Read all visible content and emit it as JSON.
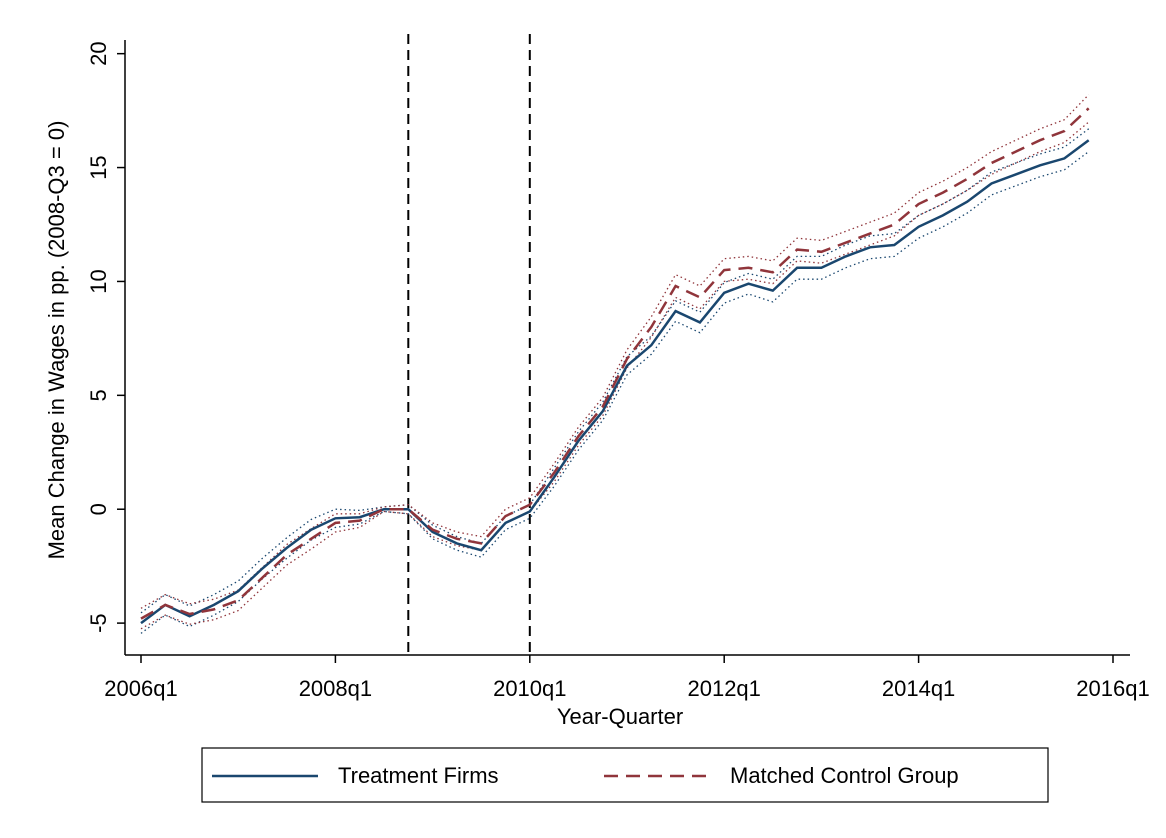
{
  "chart_data": {
    "type": "line",
    "y_label": "Mean Change in Wages in pp. (2008-Q3 = 0)",
    "x_label": "Year-Quarter",
    "x": [
      "2006q1",
      "2006q2",
      "2006q3",
      "2006q4",
      "2007q1",
      "2007q2",
      "2007q3",
      "2007q4",
      "2008q1",
      "2008q2",
      "2008q3",
      "2008q4",
      "2009q1",
      "2009q2",
      "2009q3",
      "2009q4",
      "2010q1",
      "2010q2",
      "2010q3",
      "2010q4",
      "2011q1",
      "2011q2",
      "2011q3",
      "2011q4",
      "2012q1",
      "2012q2",
      "2012q3",
      "2012q4",
      "2013q1",
      "2013q2",
      "2013q3",
      "2013q4",
      "2014q1",
      "2014q2",
      "2014q3",
      "2014q4",
      "2015q1",
      "2015q2",
      "2015q3",
      "2015q4"
    ],
    "xlim": [
      "2006q1",
      "2016q1"
    ],
    "xticks": [
      "2006q1",
      "2008q1",
      "2010q1",
      "2012q1",
      "2014q1",
      "2016q1"
    ],
    "ylim": [
      -6.4,
      20.6
    ],
    "yticks": [
      -5,
      0,
      5,
      10,
      15,
      20
    ],
    "reference_lines_x": [
      "2008q4",
      "2010q1"
    ],
    "legend": "bottom",
    "series": [
      {
        "name": "Treatment Firms",
        "color": "#1a476f",
        "dash": "solid",
        "values": [
          -5.0,
          -4.2,
          -4.7,
          -4.2,
          -3.6,
          -2.6,
          -1.7,
          -0.9,
          -0.4,
          -0.35,
          0,
          0,
          -1.0,
          -1.5,
          -1.8,
          -0.6,
          -0.1,
          1.4,
          3.0,
          4.3,
          6.3,
          7.2,
          8.7,
          8.2,
          9.5,
          9.9,
          9.6,
          10.6,
          10.6,
          11.1,
          11.5,
          11.6,
          12.4,
          12.9,
          13.5,
          14.3,
          14.7,
          15.1,
          15.4,
          16.2
        ],
        "errors": [
          0.45,
          0.45,
          0.45,
          0.45,
          0.45,
          0.45,
          0.45,
          0.45,
          0.4,
          0.3,
          0.1,
          0.2,
          0.3,
          0.3,
          0.3,
          0.3,
          0.3,
          0.4,
          0.4,
          0.4,
          0.4,
          0.4,
          0.45,
          0.45,
          0.45,
          0.45,
          0.5,
          0.5,
          0.5,
          0.5,
          0.5,
          0.5,
          0.5,
          0.5,
          0.5,
          0.5,
          0.5,
          0.5,
          0.5,
          0.5
        ]
      },
      {
        "name": "Matched Control Group",
        "color": "#90353b",
        "dash": "dashed",
        "values": [
          -4.8,
          -4.2,
          -4.6,
          -4.4,
          -4.0,
          -3.0,
          -2.0,
          -1.3,
          -0.6,
          -0.5,
          0,
          0,
          -0.9,
          -1.3,
          -1.5,
          -0.3,
          0.2,
          1.6,
          3.2,
          4.5,
          6.6,
          8.0,
          9.8,
          9.3,
          10.5,
          10.6,
          10.4,
          11.4,
          11.3,
          11.7,
          12.1,
          12.5,
          13.4,
          13.9,
          14.5,
          15.2,
          15.7,
          16.2,
          16.6,
          17.6
        ],
        "errors": [
          0.45,
          0.45,
          0.45,
          0.45,
          0.45,
          0.45,
          0.45,
          0.45,
          0.4,
          0.3,
          0.1,
          0.2,
          0.3,
          0.3,
          0.3,
          0.3,
          0.3,
          0.4,
          0.4,
          0.4,
          0.4,
          0.45,
          0.5,
          0.5,
          0.5,
          0.5,
          0.5,
          0.5,
          0.5,
          0.5,
          0.5,
          0.5,
          0.5,
          0.5,
          0.5,
          0.5,
          0.5,
          0.5,
          0.5,
          0.6
        ]
      }
    ]
  }
}
